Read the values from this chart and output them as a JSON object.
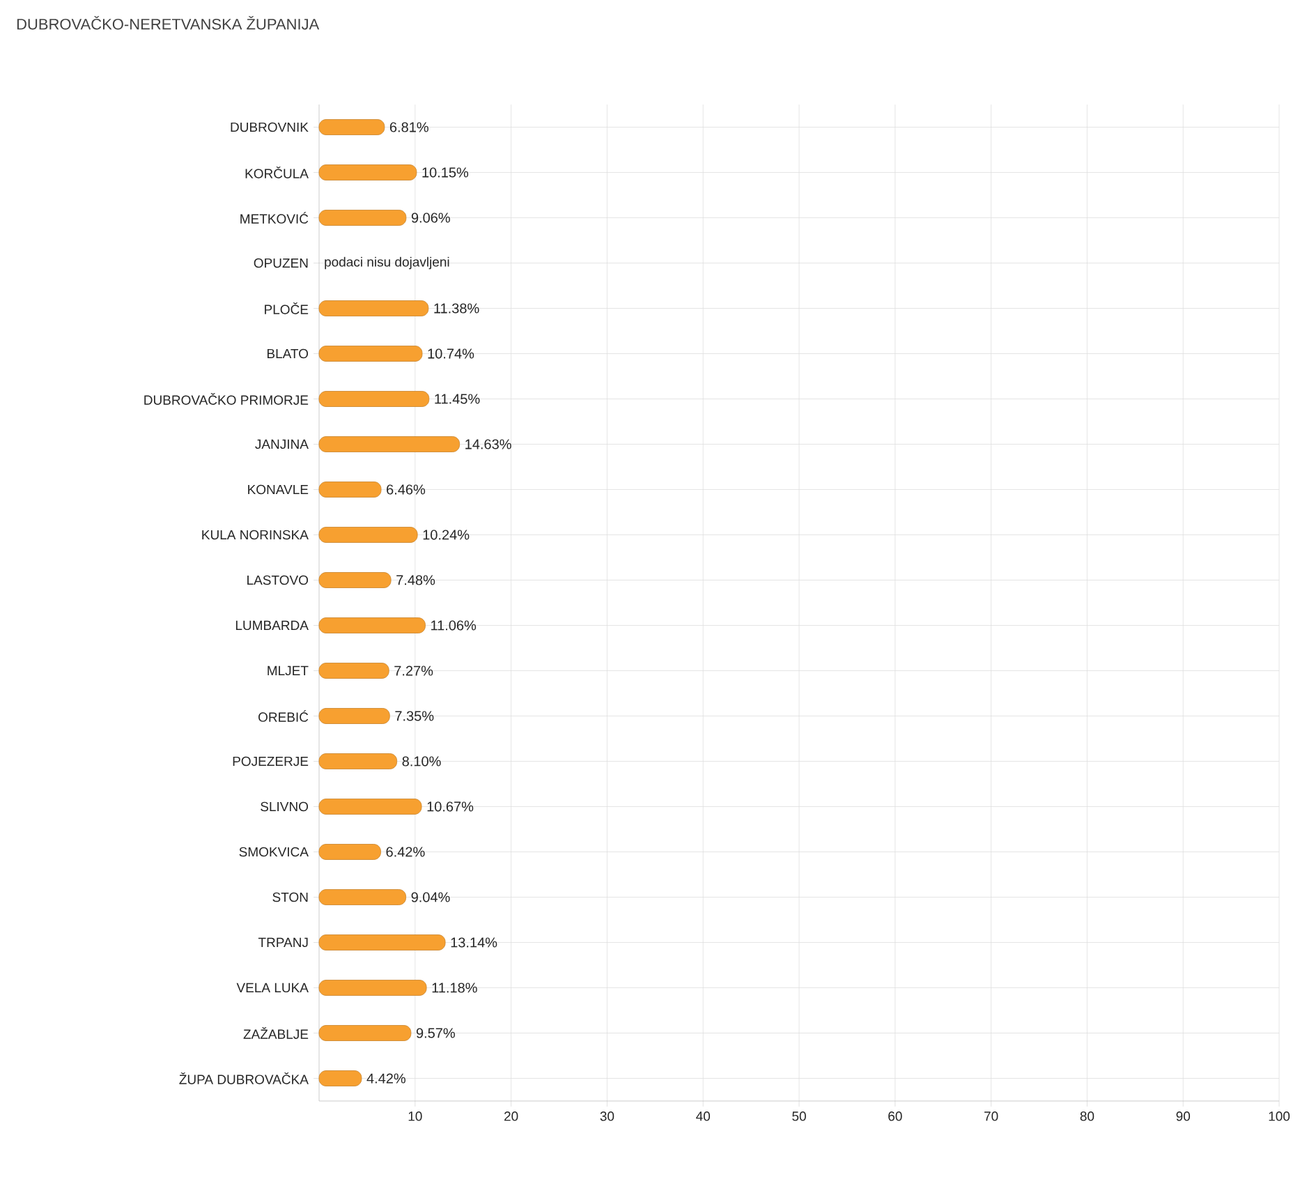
{
  "chart_data": {
    "type": "bar",
    "orientation": "horizontal",
    "title": "DUBROVAČKO-NERETVANSKA ŽUPANIJA",
    "categories": [
      "DUBROVNIK",
      "KORČULA",
      "METKOVIĆ",
      "OPUZEN",
      "PLOČE",
      "BLATO",
      "DUBROVAČKO PRIMORJE",
      "JANJINA",
      "KONAVLE",
      "KULA NORINSKA",
      "LASTOVO",
      "LUMBARDA",
      "MLJET",
      "OREBIĆ",
      "POJEZERJE",
      "SLIVNO",
      "SMOKVICA",
      "STON",
      "TRPANJ",
      "VELA LUKA",
      "ZAŽABLJE",
      "ŽUPA DUBROVAČKA"
    ],
    "values": [
      6.81,
      10.15,
      9.06,
      null,
      11.38,
      10.74,
      11.45,
      14.63,
      6.46,
      10.24,
      7.48,
      11.06,
      7.27,
      7.35,
      8.1,
      10.67,
      6.42,
      9.04,
      13.14,
      11.18,
      9.57,
      4.42
    ],
    "value_labels": [
      "6.81%",
      "10.15%",
      "9.06%",
      null,
      "11.38%",
      "10.74%",
      "11.45%",
      "14.63%",
      "6.46%",
      "10.24%",
      "7.48%",
      "11.06%",
      "7.27%",
      "7.35%",
      "8.10%",
      "10.67%",
      "6.42%",
      "9.04%",
      "13.14%",
      "11.18%",
      "9.57%",
      "4.42%"
    ],
    "color": "#f7a030",
    "xlim": [
      0,
      100
    ],
    "xticks": [
      10,
      20,
      30,
      40,
      50,
      60,
      70,
      80,
      90,
      100
    ],
    "grid": true,
    "annotations": [
      "podaci nisu dojavljeni"
    ]
  }
}
